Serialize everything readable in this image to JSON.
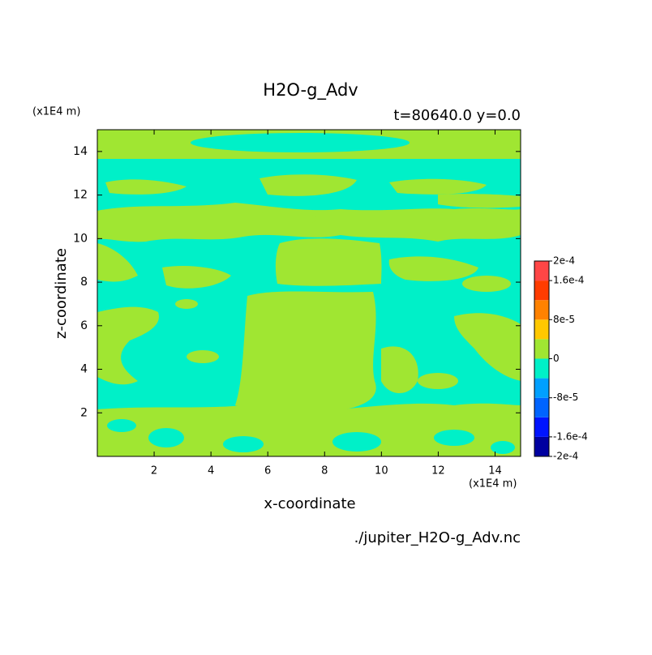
{
  "chart_data": {
    "type": "contour",
    "title": "H2O-g_Adv",
    "subtitle": "t=80640.0 y=0.0",
    "x_label": "x-coordinate",
    "y_label": "z-coordinate",
    "x_unit": "(x1E4 m)",
    "y_unit": "(x1E4 m)",
    "source": "./jupiter_H2O-g_Adv.nc",
    "xlim": [
      0,
      14.9
    ],
    "ylim": [
      0,
      15
    ],
    "xticks": [
      2,
      4,
      6,
      8,
      10,
      12,
      14
    ],
    "yticks": [
      2,
      4,
      6,
      8,
      10,
      12,
      14
    ],
    "colorbar": {
      "lim": [
        -0.0002,
        0.0002
      ],
      "levels": [
        -0.0002,
        -0.00016,
        -0.00012,
        -8e-05,
        -4e-05,
        0,
        4e-05,
        8e-05,
        0.00012,
        0.00016,
        0.0002
      ],
      "colors": [
        "#0000a0",
        "#0014ff",
        "#0064ff",
        "#00a0ff",
        "#00f0c8",
        "#a0e632",
        "#ffc800",
        "#ff8200",
        "#ff3c00",
        "#ff4646"
      ],
      "ticks": [
        {
          "value": 0.0002,
          "label": "2e-4"
        },
        {
          "value": 0.00016,
          "label": "1.6e-4"
        },
        {
          "value": 8e-05,
          "label": "8e-5"
        },
        0,
        {
          "value": -8e-05,
          "label": "-8e-5"
        },
        {
          "value": -0.00016,
          "label": "-1.6e-4"
        },
        {
          "value": -0.0002,
          "label": "-2e-4"
        }
      ]
    }
  }
}
